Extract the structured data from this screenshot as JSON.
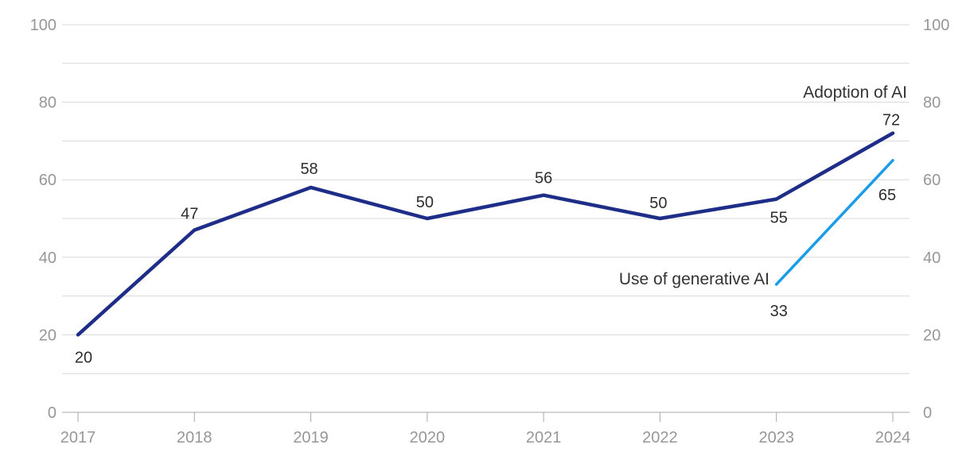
{
  "chart_data": {
    "type": "line",
    "title": "",
    "xlabel": "",
    "ylabel": "",
    "x_categories": [
      "2017",
      "2018",
      "2019",
      "2020",
      "2021",
      "2022",
      "2023",
      "2024"
    ],
    "series": [
      {
        "name": "Adoption of AI",
        "color": "#1e2d87",
        "values": [
          20,
          47,
          58,
          50,
          56,
          50,
          55,
          72
        ]
      },
      {
        "name": "Use of generative AI",
        "color": "#1a9ce8",
        "values": [
          null,
          null,
          null,
          null,
          null,
          null,
          33,
          65
        ]
      }
    ],
    "ylim": [
      0,
      100
    ],
    "y_ticks": [
      0,
      20,
      40,
      60,
      80,
      100
    ],
    "grid_step": 10,
    "grid": true,
    "y_axis_sides": [
      "left",
      "right"
    ],
    "legend_position": "inline-series-labels"
  },
  "colors": {
    "background": "#ffffff",
    "gridline": "#d8d8d8",
    "axis_line": "#a8a8a8",
    "axis_text": "#979797",
    "data_label_text": "#2e2e2e",
    "adoption_line": "#1e2d87",
    "generative_line": "#1a9ce8"
  }
}
